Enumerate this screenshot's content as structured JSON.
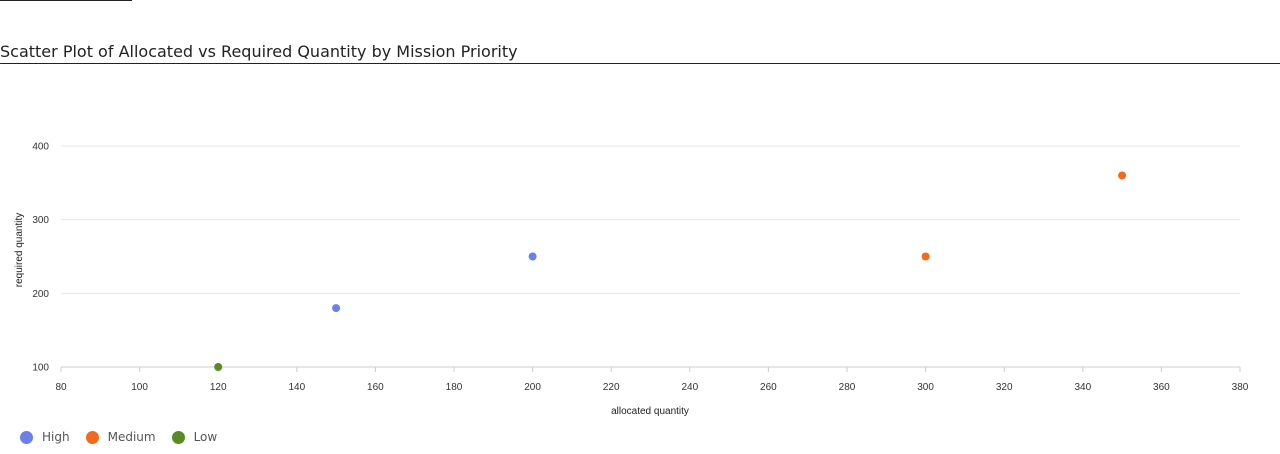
{
  "chart_data": {
    "type": "scatter",
    "title": "Scatter Plot of Allocated vs Required Quantity by Mission Priority",
    "xlabel": "allocated quantity",
    "ylabel": "required quantity",
    "xlim": [
      80,
      380
    ],
    "ylim": [
      100,
      400
    ],
    "xticks": [
      80,
      100,
      120,
      140,
      160,
      180,
      200,
      220,
      240,
      260,
      280,
      300,
      320,
      340,
      360,
      380
    ],
    "yticks": [
      100,
      200,
      300,
      400
    ],
    "grid": "horizontal",
    "legend_position": "bottom-left",
    "series": [
      {
        "name": "High",
        "color": "#6b80e8",
        "points": [
          {
            "x": 150,
            "y": 180
          },
          {
            "x": 200,
            "y": 250
          }
        ]
      },
      {
        "name": "Medium",
        "color": "#f26b1d",
        "points": [
          {
            "x": 300,
            "y": 250
          },
          {
            "x": 350,
            "y": 360
          }
        ]
      },
      {
        "name": "Low",
        "color": "#5a8a23",
        "points": [
          {
            "x": 120,
            "y": 100
          }
        ]
      }
    ]
  }
}
